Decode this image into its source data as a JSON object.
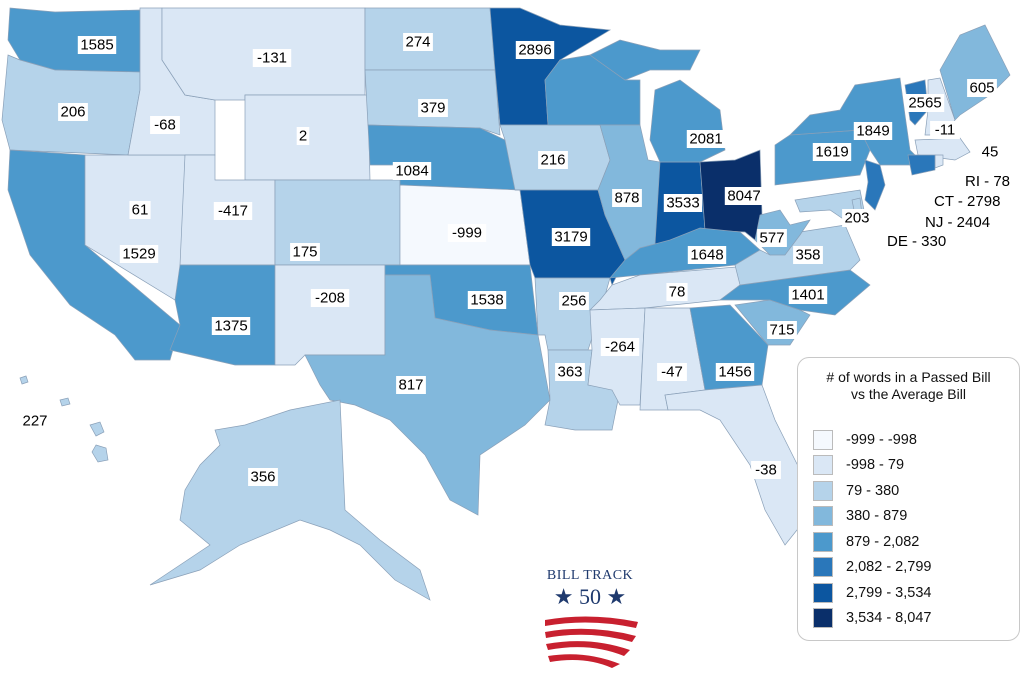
{
  "legend": {
    "title_line1": "# of words in a Passed Bill",
    "title_line2": "vs the Average Bill",
    "bins": [
      {
        "label": "-999 - -998",
        "color": "#f5f9fe"
      },
      {
        "label": "-998 - 79",
        "color": "#dae7f5"
      },
      {
        "label": "79 - 380",
        "color": "#b5d3ea"
      },
      {
        "label": "380 - 879",
        "color": "#82b8dc"
      },
      {
        "label": "879 - 2,082",
        "color": "#4c99cc"
      },
      {
        "label": "2,082 - 2,799",
        "color": "#2a77ba"
      },
      {
        "label": "2,799 - 3,534",
        "color": "#0c56a0"
      },
      {
        "label": "3,534 - 8,047",
        "color": "#0a2f6a"
      }
    ]
  },
  "states": [
    {
      "abbr": "WA",
      "value": "1585",
      "bin": 4
    },
    {
      "abbr": "OR",
      "value": "206",
      "bin": 2
    },
    {
      "abbr": "CA",
      "value": "1529",
      "bin": 4
    },
    {
      "abbr": "NV",
      "value": "61",
      "bin": 1
    },
    {
      "abbr": "ID",
      "value": "-68",
      "bin": 1
    },
    {
      "abbr": "MT",
      "value": "-131",
      "bin": 1
    },
    {
      "abbr": "WY",
      "value": "2",
      "bin": 1
    },
    {
      "abbr": "UT",
      "value": "-417",
      "bin": 1
    },
    {
      "abbr": "CO",
      "value": "175",
      "bin": 2
    },
    {
      "abbr": "AZ",
      "value": "1375",
      "bin": 4
    },
    {
      "abbr": "NM",
      "value": "-208",
      "bin": 1
    },
    {
      "abbr": "ND",
      "value": "274",
      "bin": 2
    },
    {
      "abbr": "SD",
      "value": "379",
      "bin": 2
    },
    {
      "abbr": "NE",
      "value": "1084",
      "bin": 4
    },
    {
      "abbr": "KS",
      "value": "-999",
      "bin": 0
    },
    {
      "abbr": "OK",
      "value": "1538",
      "bin": 4
    },
    {
      "abbr": "TX",
      "value": "817",
      "bin": 3
    },
    {
      "abbr": "MN",
      "value": "2896",
      "bin": 6
    },
    {
      "abbr": "IA",
      "value": "216",
      "bin": 2
    },
    {
      "abbr": "MO",
      "value": "3179",
      "bin": 6
    },
    {
      "abbr": "AR",
      "value": "256",
      "bin": 2
    },
    {
      "abbr": "LA",
      "value": "363",
      "bin": 2
    },
    {
      "abbr": "WI",
      "value": null,
      "bin": 4
    },
    {
      "abbr": "IL",
      "value": "878",
      "bin": 3
    },
    {
      "abbr": "IN",
      "value": "3533",
      "bin": 6
    },
    {
      "abbr": "MI",
      "value": "2081",
      "bin": 4
    },
    {
      "abbr": "OH",
      "value": "8047",
      "bin": 7
    },
    {
      "abbr": "KY",
      "value": "1648",
      "bin": 4
    },
    {
      "abbr": "TN",
      "value": "78",
      "bin": 1
    },
    {
      "abbr": "MS",
      "value": "-264",
      "bin": 1
    },
    {
      "abbr": "AL",
      "value": "-47",
      "bin": 1
    },
    {
      "abbr": "GA",
      "value": "1456",
      "bin": 4
    },
    {
      "abbr": "FL",
      "value": "-38",
      "bin": 1
    },
    {
      "abbr": "SC",
      "value": "715",
      "bin": 3
    },
    {
      "abbr": "NC",
      "value": "1401",
      "bin": 4
    },
    {
      "abbr": "VA",
      "value": "358",
      "bin": 2
    },
    {
      "abbr": "WV",
      "value": "577",
      "bin": 3
    },
    {
      "abbr": "MD",
      "value": "203",
      "bin": 2
    },
    {
      "abbr": "PA",
      "value": "1619",
      "bin": 4
    },
    {
      "abbr": "NY",
      "value": "1849",
      "bin": 4
    },
    {
      "abbr": "VT",
      "value": "2565",
      "bin": 5
    },
    {
      "abbr": "NH",
      "value": "-11",
      "bin": 1
    },
    {
      "abbr": "ME",
      "value": "605",
      "bin": 3
    },
    {
      "abbr": "MA",
      "value": "45",
      "bin": 1
    },
    {
      "abbr": "AK",
      "value": "356",
      "bin": 2
    },
    {
      "abbr": "HI",
      "value": "227",
      "bin": 2
    }
  ],
  "callouts": [
    {
      "abbr": "RI",
      "text": "RI - 78",
      "bin": 1
    },
    {
      "abbr": "CT",
      "text": "CT - 2798",
      "bin": 5
    },
    {
      "abbr": "NJ",
      "text": "NJ - 2404",
      "bin": 5
    },
    {
      "abbr": "DE",
      "text": "DE - 330",
      "bin": 2
    }
  ],
  "logo": {
    "line1": "BILL TRACK",
    "line2": "★ 50 ★"
  }
}
